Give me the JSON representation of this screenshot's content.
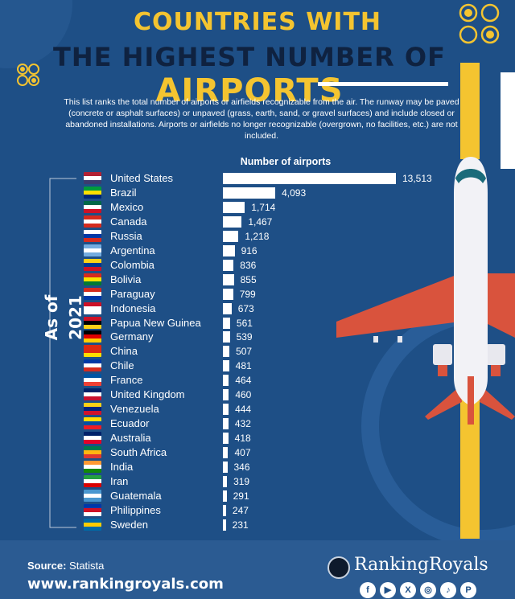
{
  "header": {
    "title_line1": "COUNTRIES WITH",
    "title_line2a": "THE HIGHEST NUMBER OF ",
    "title_line2b": "AIRPORTS"
  },
  "description": "This list ranks the total number of airports or airfields recognizable from the air. The runway may be paved (concrete or asphalt surfaces) or unpaved (grass, earth, sand, or gravel surfaces) and include closed or abandoned installations. Airports or airfields no longer recognizable (overgrown, no facilities, etc.) are not included.",
  "as_of": "As of 2021",
  "chart_data": {
    "type": "bar",
    "orientation": "horizontal",
    "value_header": "Number of airports",
    "categories": [
      "United States",
      "Brazil",
      "Mexico",
      "Canada",
      "Russia",
      "Argentina",
      "Colombia",
      "Bolivia",
      "Paraguay",
      "Indonesia",
      "Papua New Guinea",
      "Germany",
      "China",
      "Chile",
      "France",
      "United Kingdom",
      "Venezuela",
      "Ecuador",
      "Australia",
      "South Africa",
      "India",
      "Iran",
      "Guatemala",
      "Philippines",
      "Sweden"
    ],
    "values": [
      13513,
      4093,
      1714,
      1467,
      1218,
      916,
      836,
      855,
      799,
      673,
      561,
      539,
      507,
      481,
      464,
      460,
      444,
      432,
      418,
      407,
      346,
      319,
      291,
      247,
      231
    ],
    "value_labels": [
      "13,513",
      "4,093",
      "1,714",
      "1,467",
      "1,218",
      "916",
      "836",
      "855",
      "799",
      "673",
      "561",
      "539",
      "507",
      "481",
      "464",
      "460",
      "444",
      "432",
      "418",
      "407",
      "346",
      "319",
      "291",
      "247",
      "231"
    ],
    "bar_color": "#ffffff"
  },
  "flags": [
    {
      "icon": "us-flag-icon",
      "colors": [
        "#b22234",
        "#ffffff",
        "#3c3b6e"
      ]
    },
    {
      "icon": "brazil-flag-icon",
      "colors": [
        "#009c3b",
        "#ffdf00",
        "#002776"
      ]
    },
    {
      "icon": "mexico-flag-icon",
      "colors": [
        "#006847",
        "#ffffff",
        "#ce1126"
      ]
    },
    {
      "icon": "canada-flag-icon",
      "colors": [
        "#d52b1e",
        "#ffffff",
        "#d52b1e"
      ]
    },
    {
      "icon": "russia-flag-icon",
      "colors": [
        "#ffffff",
        "#0039a6",
        "#d52b1e"
      ]
    },
    {
      "icon": "argentina-flag-icon",
      "colors": [
        "#74acdf",
        "#ffffff",
        "#74acdf"
      ]
    },
    {
      "icon": "colombia-flag-icon",
      "colors": [
        "#fcd116",
        "#003893",
        "#ce1126"
      ]
    },
    {
      "icon": "bolivia-flag-icon",
      "colors": [
        "#d52b1e",
        "#f9e300",
        "#007934"
      ]
    },
    {
      "icon": "paraguay-flag-icon",
      "colors": [
        "#d52b1e",
        "#ffffff",
        "#0038a8"
      ]
    },
    {
      "icon": "indonesia-flag-icon",
      "colors": [
        "#ce1126",
        "#ffffff",
        "#ffffff"
      ]
    },
    {
      "icon": "png-flag-icon",
      "colors": [
        "#ce1126",
        "#000000",
        "#fcd116"
      ]
    },
    {
      "icon": "germany-flag-icon",
      "colors": [
        "#000000",
        "#dd0000",
        "#ffce00"
      ]
    },
    {
      "icon": "china-flag-icon",
      "colors": [
        "#de2910",
        "#de2910",
        "#ffde00"
      ]
    },
    {
      "icon": "chile-flag-icon",
      "colors": [
        "#0039a6",
        "#ffffff",
        "#d52b1e"
      ]
    },
    {
      "icon": "france-flag-icon",
      "colors": [
        "#0055a4",
        "#ffffff",
        "#ef4135"
      ]
    },
    {
      "icon": "uk-flag-icon",
      "colors": [
        "#012169",
        "#ffffff",
        "#c8102e"
      ]
    },
    {
      "icon": "venezuela-flag-icon",
      "colors": [
        "#fcd116",
        "#00247d",
        "#cf142b"
      ]
    },
    {
      "icon": "ecuador-flag-icon",
      "colors": [
        "#ffdd00",
        "#034ea2",
        "#ed1c24"
      ]
    },
    {
      "icon": "australia-flag-icon",
      "colors": [
        "#012169",
        "#ffffff",
        "#e4002b"
      ]
    },
    {
      "icon": "south-africa-flag-icon",
      "colors": [
        "#007a4d",
        "#ffb612",
        "#de3831"
      ]
    },
    {
      "icon": "india-flag-icon",
      "colors": [
        "#ff9933",
        "#ffffff",
        "#138808"
      ]
    },
    {
      "icon": "iran-flag-icon",
      "colors": [
        "#239f40",
        "#ffffff",
        "#da0000"
      ]
    },
    {
      "icon": "guatemala-flag-icon",
      "colors": [
        "#4997d0",
        "#ffffff",
        "#4997d0"
      ]
    },
    {
      "icon": "philippines-flag-icon",
      "colors": [
        "#0038a8",
        "#ce1126",
        "#ffffff"
      ]
    },
    {
      "icon": "sweden-flag-icon",
      "colors": [
        "#006aa7",
        "#fecc00",
        "#006aa7"
      ]
    }
  ],
  "footer": {
    "source_label": "Source:",
    "source_value": "Statista",
    "url": "www.rankingroyals.com",
    "brand": "RankingRoyals",
    "social_icons": [
      "facebook-icon",
      "youtube-icon",
      "x-icon",
      "instagram-icon",
      "tiktok-icon",
      "pinterest-icon"
    ]
  },
  "colors": {
    "background": "#1e4f86",
    "accent": "#f4c430",
    "plane_wing": "#d9533d"
  }
}
